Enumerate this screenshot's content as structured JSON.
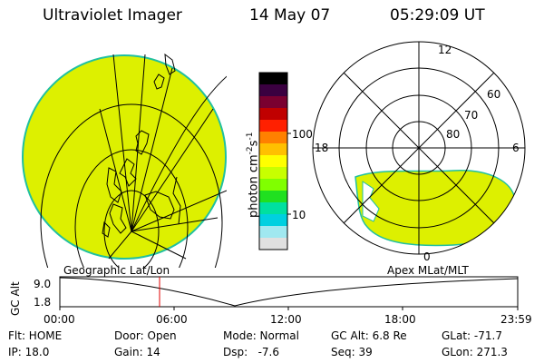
{
  "header": {
    "instrument": "Ultraviolet Imager",
    "date": "14 May 07",
    "time": "05:29:09 UT"
  },
  "colorbar": {
    "unit_main": "photon cm",
    "unit_exp1": "-2",
    "unit_s": "s",
    "unit_exp2": "-1",
    "tick_labels": [
      "100",
      "10"
    ],
    "scale": "log",
    "colors": [
      "#000000",
      "#3a0040",
      "#7a0030",
      "#c00000",
      "#ff2000",
      "#ff8000",
      "#ffc000",
      "#ffff00",
      "#c8ff00",
      "#80ff00",
      "#20e020",
      "#00e0a0",
      "#00d0e0",
      "#a0e8f0",
      "#e0e0e0"
    ]
  },
  "left_panel": {
    "label": "Geographic Lat/Lon",
    "fill_color": "#ddf000",
    "edge_color": "#20c0a0"
  },
  "right_panel": {
    "label": "Apex MLat/MLT",
    "mlt_labels": [
      "12",
      "18",
      "6",
      "0"
    ],
    "mlat_labels": [
      "60",
      "70",
      "80"
    ],
    "fill_color": "#ddf000"
  },
  "altitude_plot": {
    "ylabel": "GC Alt",
    "y_ticks": [
      "9.0",
      "1.8"
    ],
    "x_ticks": [
      "00:00",
      "06:00",
      "12:00",
      "18:00",
      "23:59"
    ],
    "marker_time": "05:29",
    "marker_color": "#e00000"
  },
  "status": {
    "flt": "Flt: HOME",
    "door": "Door: Open",
    "mode": "Mode: Normal",
    "gc_alt": "GC Alt: 6.8 Re",
    "glat": "GLat: -71.7",
    "ip": "IP: 18.0",
    "gain": "Gain: 14",
    "dsp": "Dsp:   -7.6",
    "seq": "Seq: 39",
    "glon": "GLon: 271.3"
  }
}
